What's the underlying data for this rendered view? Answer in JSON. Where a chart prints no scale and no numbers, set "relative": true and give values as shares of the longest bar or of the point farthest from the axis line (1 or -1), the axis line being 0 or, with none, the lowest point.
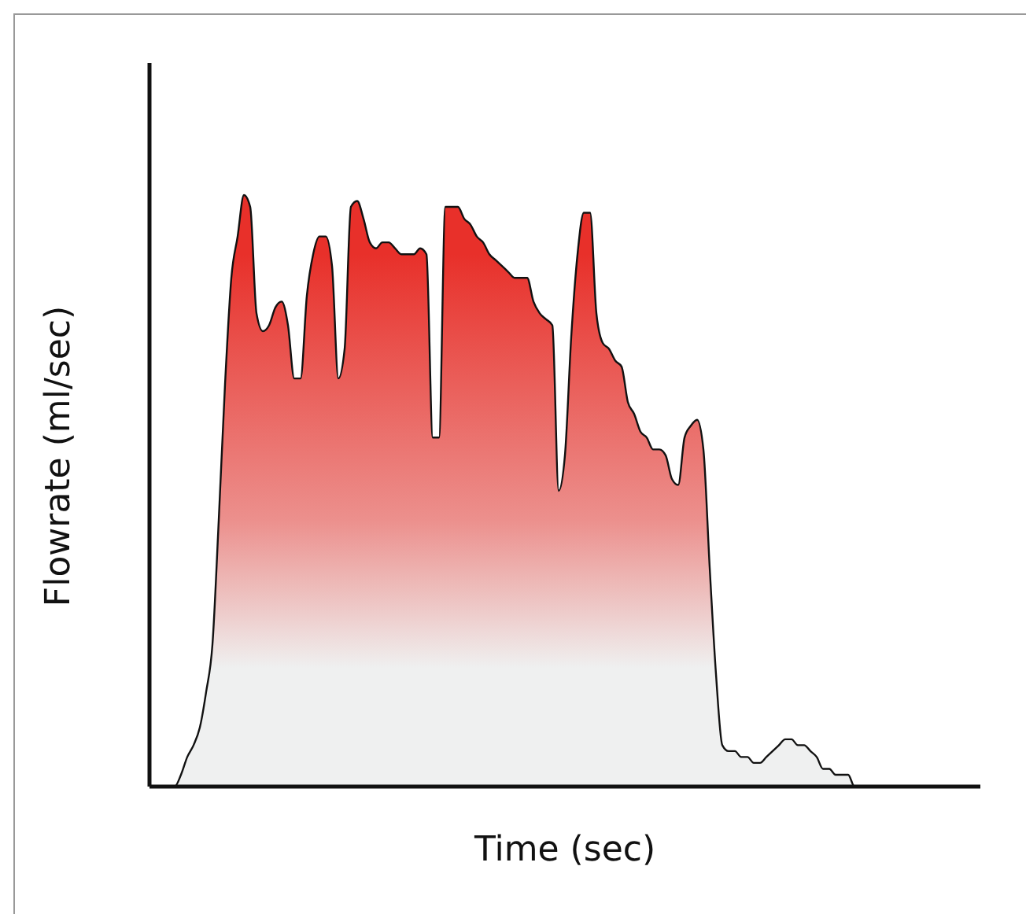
{
  "chart_data": {
    "type": "area",
    "relative": true,
    "xlabel": "Time (sec)",
    "ylabel": "Flowrate (ml/sec)",
    "categories": [
      null,
      null,
      null,
      null,
      null,
      null,
      null,
      null,
      null,
      null,
      null,
      null,
      null,
      null,
      null,
      null,
      null,
      null,
      null,
      null,
      null,
      null,
      null,
      null,
      null,
      null,
      null,
      null,
      null,
      null,
      null,
      null,
      null,
      null,
      null,
      null,
      null,
      null,
      null,
      null,
      null,
      null,
      null,
      null,
      null,
      null,
      null,
      null,
      null,
      null,
      null,
      null,
      null,
      null,
      null,
      null,
      null,
      null,
      null,
      null,
      null,
      null,
      null,
      null,
      null,
      null,
      null,
      null,
      null,
      null,
      null,
      null,
      null,
      null,
      null,
      null,
      null,
      null,
      null,
      null,
      null,
      null,
      null,
      null,
      null,
      null,
      null,
      null,
      null,
      null,
      null,
      null,
      null,
      null,
      null,
      null,
      null,
      null,
      null,
      null,
      null,
      null,
      null,
      null,
      null,
      null,
      null,
      null,
      null,
      null,
      null,
      null,
      null,
      null,
      null,
      null,
      null,
      null,
      null,
      null,
      null,
      null,
      null,
      null,
      null,
      null,
      null,
      null,
      null,
      null,
      null,
      null,
      null
    ],
    "series": [
      {
        "color": "#e8302a",
        "values": [
          0,
          0,
          0,
          0,
          0,
          0.02,
          0.05,
          0.07,
          0.1,
          0.16,
          0.24,
          0.45,
          0.68,
          0.86,
          0.93,
          1,
          0.98,
          0.8,
          0.77,
          0.78,
          0.81,
          0.82,
          0.78,
          0.69,
          0.69,
          0.83,
          0.9,
          0.93,
          0.93,
          0.88,
          0.69,
          0.74,
          0.98,
          0.99,
          0.96,
          0.92,
          0.91,
          0.92,
          0.92,
          0.91,
          0.9,
          0.9,
          0.9,
          0.91,
          0.9,
          0.59,
          0.59,
          0.98,
          0.98,
          0.98,
          0.96,
          0.95,
          0.93,
          0.92,
          0.9,
          0.89,
          0.88,
          0.87,
          0.86,
          0.86,
          0.86,
          0.82,
          0.8,
          0.79,
          0.78,
          0.5,
          0.56,
          0.76,
          0.9,
          0.97,
          0.97,
          0.8,
          0.75,
          0.74,
          0.72,
          0.71,
          0.65,
          0.63,
          0.6,
          0.59,
          0.57,
          0.57,
          0.56,
          0.52,
          0.51,
          0.59,
          0.61,
          0.62,
          0.57,
          0.37,
          0.19,
          0.07,
          0.06,
          0.06,
          0.05,
          0.05,
          0.04,
          0.04,
          0.05,
          0.06,
          0.07,
          0.08,
          0.08,
          0.07,
          0.07,
          0.06,
          0.05,
          0.03,
          0.03,
          0.02,
          0.02,
          0.02,
          0,
          0,
          0,
          0,
          0,
          0,
          0,
          0,
          0,
          0,
          0,
          0,
          0,
          0,
          0,
          0,
          0,
          0,
          0,
          0,
          0
        ]
      }
    ]
  }
}
